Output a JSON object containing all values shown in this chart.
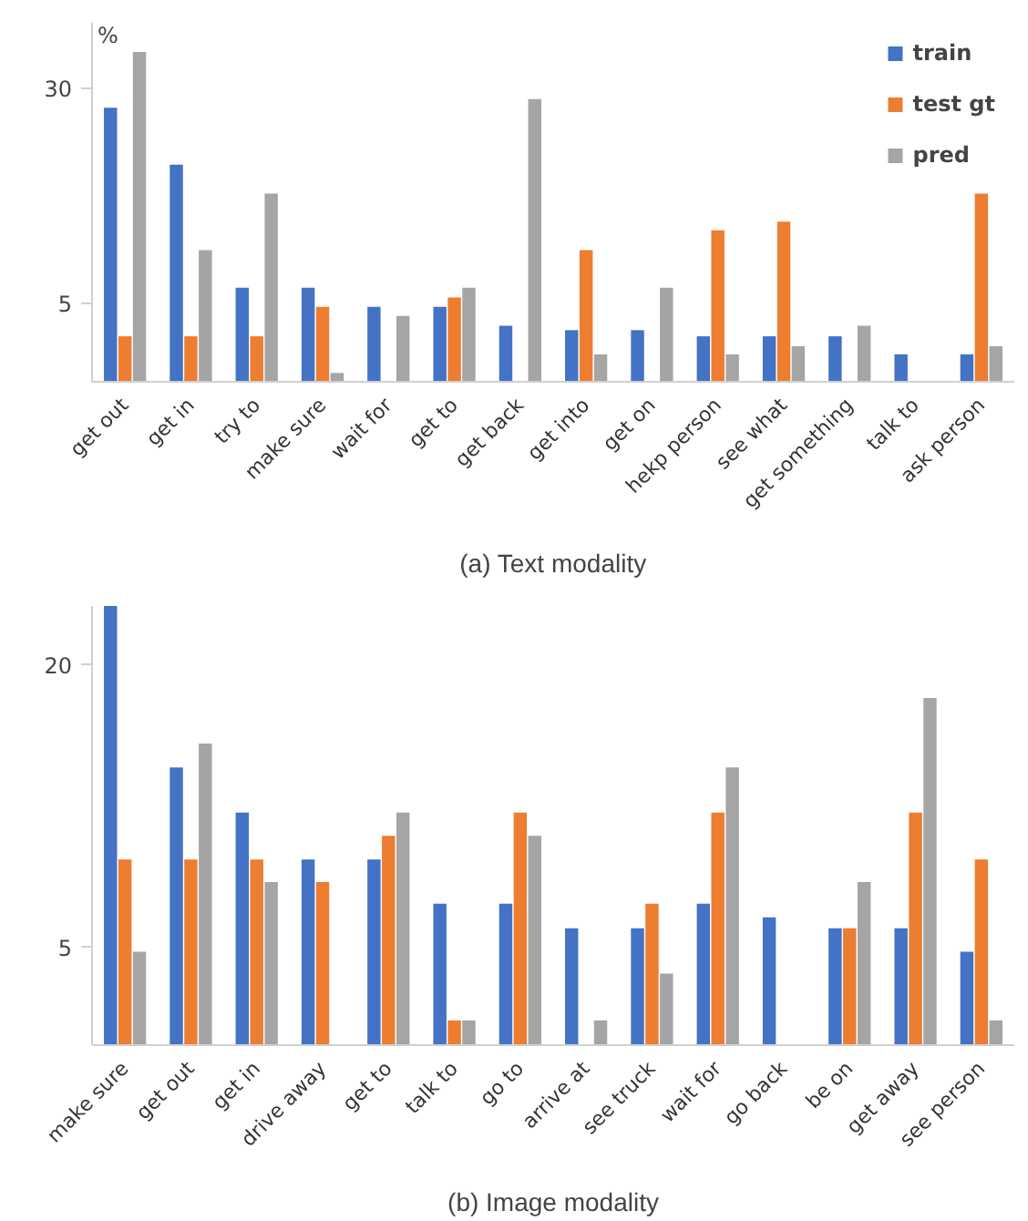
{
  "chart_data": [
    {
      "type": "bar",
      "xlabel": "(a) Text modality",
      "ylabel": "%",
      "log": "y",
      "ylim": [
        2.6,
        52
      ],
      "yticks": [
        5,
        30
      ],
      "grid": false,
      "legend": "top right",
      "categories": [
        "get out",
        "get in",
        "try to",
        "make sure",
        "wait for",
        "get to",
        "get back",
        "get into",
        "get on",
        "hekp person",
        "see what",
        "get something",
        "talk to",
        "ask person"
      ],
      "series": [
        {
          "name": "train",
          "color": "#4472c4",
          "values": [
            25.6,
            15.9,
            5.7,
            5.7,
            4.86,
            4.86,
            4.15,
            4.0,
            4.0,
            3.8,
            3.8,
            3.8,
            3.27,
            3.27
          ]
        },
        {
          "name": "test gt",
          "color": "#ed7d31",
          "values": [
            3.8,
            3.8,
            3.8,
            4.86,
            null,
            5.25,
            null,
            7.8,
            null,
            9.2,
            9.9,
            null,
            null,
            12.5
          ]
        },
        {
          "name": "pred",
          "color": "#a5a5a5",
          "values": [
            40.8,
            7.8,
            12.5,
            2.8,
            4.5,
            5.7,
            27.5,
            3.27,
            5.7,
            3.27,
            3.5,
            4.15,
            null,
            3.5
          ]
        }
      ]
    },
    {
      "type": "bar",
      "xlabel": "(b) Image modality",
      "log": "y",
      "ylim": [
        3.1,
        26.7
      ],
      "yticks": [
        5,
        20
      ],
      "grid": false,
      "categories": [
        "make sure",
        "get out",
        "get in",
        "drive away",
        "get to",
        "talk to",
        "go to",
        "arrive at",
        "see truck",
        "wait for",
        "go back",
        "be on",
        "get away",
        "see person"
      ],
      "series": [
        {
          "color": "#4472c4",
          "values": [
            26.7,
            12.1,
            9.7,
            7.7,
            7.7,
            6.2,
            6.2,
            5.5,
            5.5,
            6.2,
            5.8,
            5.5,
            5.5,
            4.9
          ]
        },
        {
          "color": "#ed7d31",
          "values": [
            7.7,
            7.7,
            7.7,
            6.9,
            8.65,
            3.5,
            9.7,
            null,
            6.2,
            9.7,
            null,
            5.5,
            9.7,
            7.7
          ]
        },
        {
          "color": "#a5a5a5",
          "values": [
            4.9,
            13.6,
            6.9,
            null,
            9.7,
            3.5,
            8.65,
            3.5,
            4.4,
            12.1,
            null,
            6.9,
            17.0,
            3.5
          ]
        }
      ]
    }
  ]
}
